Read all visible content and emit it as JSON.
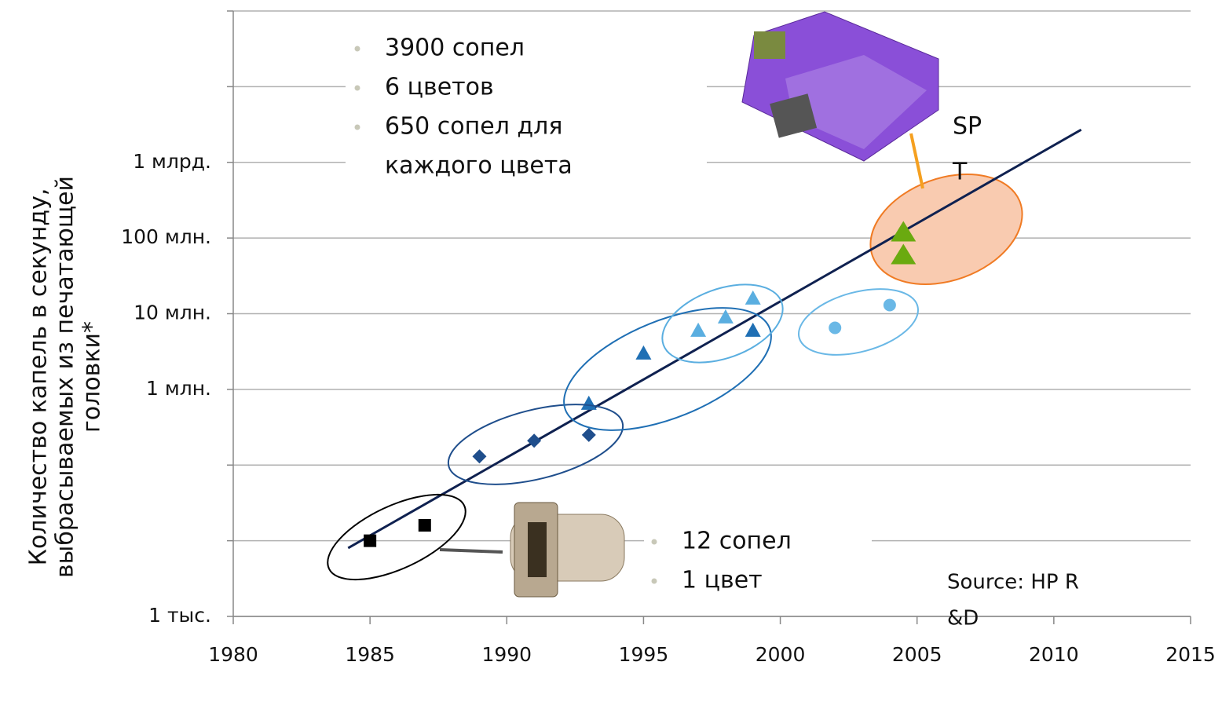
{
  "chart_data": {
    "type": "scatter",
    "y_label_lines": [
      "Количество капель в секунду,",
      "выбрасываемых из печатающей",
      "головки*"
    ],
    "xlim": [
      1980,
      2015
    ],
    "xticks": [
      1980,
      1985,
      1990,
      1995,
      2000,
      2005,
      2010,
      2015
    ],
    "ylim": [
      1000,
      100000000000
    ],
    "log_y": true,
    "grid": true,
    "yticks": [
      {
        "value": 1000,
        "label": "1 тыс."
      },
      {
        "value": 10000,
        "label": null
      },
      {
        "value": 100000,
        "label": null
      },
      {
        "value": 1000000,
        "label": "1 млн."
      },
      {
        "value": 10000000,
        "label": "10 млн."
      },
      {
        "value": 100000000,
        "label": "100 млн."
      },
      {
        "value": 1000000000,
        "label": "1 млрд."
      },
      {
        "value": 10000000000,
        "label": null
      },
      {
        "value": 100000000000,
        "label": null
      }
    ],
    "series": [
      {
        "marker": "square",
        "color": "#000000",
        "x": [
          1985,
          1987
        ],
        "values": [
          10000,
          16000
        ]
      },
      {
        "marker": "diamond",
        "color": "#1f4e8c",
        "x": [
          1989,
          1991,
          1993
        ],
        "values": [
          130000,
          210000,
          250000
        ]
      },
      {
        "marker": "triangle",
        "color": "#1f6fb4",
        "x": [
          1993,
          1995,
          1999
        ],
        "values": [
          650000,
          3000000,
          6000000
        ]
      },
      {
        "marker": "triangle",
        "color": "#5aaee0",
        "x": [
          1997,
          1998,
          1999
        ],
        "values": [
          6000000,
          9000000,
          16000000
        ]
      },
      {
        "marker": "circle",
        "color": "#6ab8e6",
        "x": [
          2002,
          2004
        ],
        "values": [
          6500000,
          13000000
        ]
      },
      {
        "marker": "big-triangle",
        "color": "#6aaa10",
        "x": [
          2004.5,
          2004.5
        ],
        "values": [
          120000000,
          60000000
        ]
      }
    ],
    "trend": {
      "color": "#0f2150",
      "x": [
        1984.2,
        2011
      ],
      "values": [
        8000,
        2700000000
      ]
    },
    "annotations": {
      "top_bullets": [
        [
          "3900 сопел"
        ],
        [
          "6 цветов"
        ],
        [
          "650 сопел для",
          "каждого цвета"
        ]
      ],
      "bottom_bullets": [
        [
          "12 сопел"
        ],
        [
          "1 цвет"
        ]
      ],
      "spt": [
        "SP",
        "T"
      ],
      "source": [
        "Source: HP R",
        "&D"
      ]
    }
  }
}
